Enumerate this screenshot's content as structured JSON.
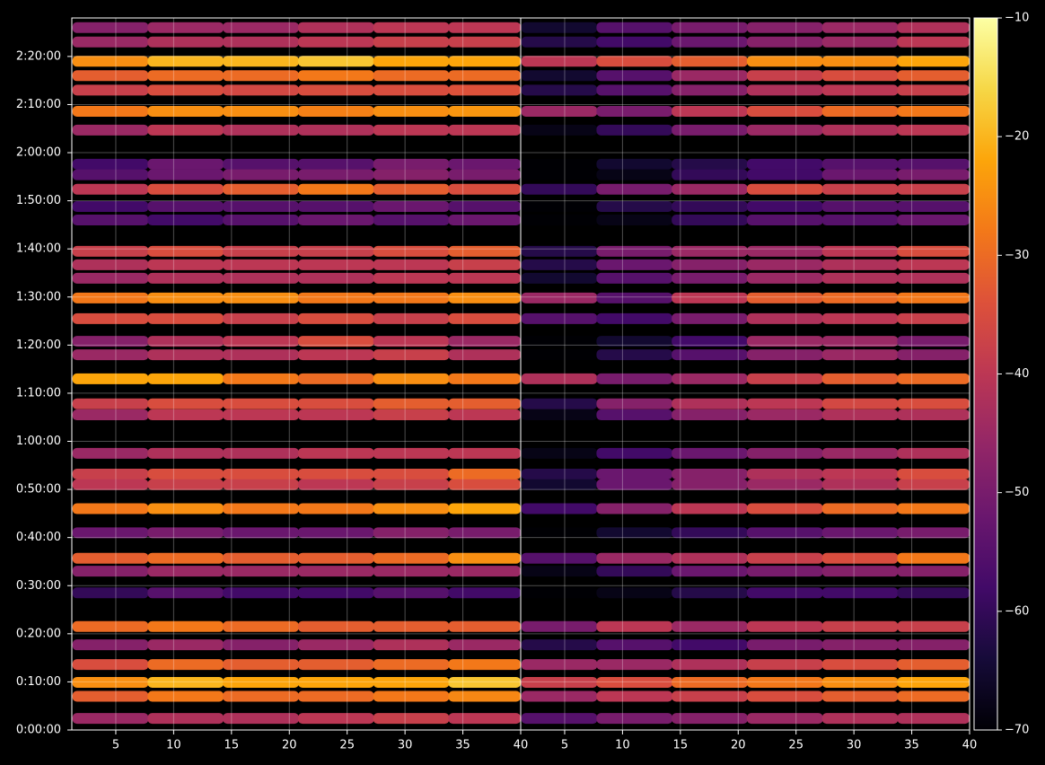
{
  "chart_data": {
    "type": "heatmap",
    "colormap": "inferno",
    "grid": true,
    "x": [
      4.5,
      11,
      17.5,
      24,
      30.5,
      37
    ],
    "y": [
      146,
      143,
      139,
      136,
      133,
      128.6,
      124.7,
      117.6,
      115.4,
      112.4,
      108.8,
      106,
      99.5,
      96.7,
      93.9,
      89.8,
      85.5,
      80.8,
      78,
      73,
      67.8,
      65.5,
      57.5,
      53.2,
      51,
      46,
      41,
      35.7,
      33,
      28.5,
      21.5,
      17.7,
      13.6,
      9.9,
      7,
      2.4
    ],
    "panels": [
      {
        "values": [
          [
            -48,
            -45,
            -45,
            -42,
            -40,
            -40
          ],
          [
            -45,
            -42,
            -42,
            -40,
            -38,
            -38
          ],
          [
            -25,
            -20,
            -20,
            -18,
            -22,
            -22
          ],
          [
            -32,
            -30,
            -30,
            -28,
            -30,
            -30
          ],
          [
            -38,
            -35,
            -36,
            -35,
            -35,
            -34
          ],
          [
            -28,
            -25,
            -25,
            -27,
            -25,
            -24
          ],
          [
            -45,
            -40,
            -42,
            -42,
            -40,
            -40
          ],
          [
            -58,
            -52,
            -55,
            -55,
            -50,
            -52
          ],
          [
            -55,
            -52,
            -50,
            -50,
            -48,
            -50
          ],
          [
            -40,
            -35,
            -32,
            -28,
            -32,
            -35
          ],
          [
            -58,
            -55,
            -55,
            -55,
            -52,
            -55
          ],
          [
            -55,
            -58,
            -55,
            -52,
            -55,
            -52
          ],
          [
            -38,
            -35,
            -38,
            -38,
            -35,
            -32
          ],
          [
            -42,
            -40,
            -40,
            -40,
            -40,
            -38
          ],
          [
            -45,
            -42,
            -42,
            -42,
            -40,
            -40
          ],
          [
            -28,
            -25,
            -25,
            -28,
            -28,
            -25
          ],
          [
            -35,
            -35,
            -38,
            -35,
            -38,
            -35
          ],
          [
            -48,
            -42,
            -40,
            -35,
            -40,
            -45
          ],
          [
            -45,
            -42,
            -42,
            -40,
            -38,
            -42
          ],
          [
            -22,
            -22,
            -28,
            -30,
            -25,
            -28
          ],
          [
            -38,
            -35,
            -35,
            -35,
            -32,
            -32
          ],
          [
            -45,
            -40,
            -40,
            -40,
            -38,
            -40
          ],
          [
            -45,
            -42,
            -42,
            -40,
            -40,
            -40
          ],
          [
            -38,
            -35,
            -35,
            -35,
            -35,
            -30
          ],
          [
            -40,
            -38,
            -38,
            -40,
            -38,
            -35
          ],
          [
            -28,
            -25,
            -28,
            -28,
            -25,
            -22
          ],
          [
            -52,
            -50,
            -52,
            -52,
            -48,
            -50
          ],
          [
            -32,
            -30,
            -32,
            -32,
            -30,
            -25
          ],
          [
            -48,
            -45,
            -45,
            -45,
            -45,
            -45
          ],
          [
            -60,
            -55,
            -58,
            -58,
            -55,
            -58
          ],
          [
            -30,
            -28,
            -30,
            -32,
            -32,
            -32
          ],
          [
            -48,
            -45,
            -48,
            -45,
            -42,
            -45
          ],
          [
            -35,
            -30,
            -32,
            -32,
            -30,
            -28
          ],
          [
            -25,
            -20,
            -22,
            -22,
            -22,
            -18
          ],
          [
            -32,
            -28,
            -30,
            -30,
            -28,
            -26
          ],
          [
            -45,
            -42,
            -42,
            -40,
            -38,
            -40
          ]
        ]
      },
      {
        "values": [
          [
            -65,
            -55,
            -50,
            -48,
            -45,
            -42
          ],
          [
            -62,
            -58,
            -52,
            -48,
            -45,
            -40
          ],
          [
            -40,
            -35,
            -32,
            -25,
            -25,
            -22
          ],
          [
            -65,
            -55,
            -45,
            -38,
            -35,
            -32
          ],
          [
            -62,
            -55,
            -48,
            -42,
            -40,
            -38
          ],
          [
            -45,
            -50,
            -40,
            -35,
            -30,
            -28
          ],
          [
            -68,
            -60,
            -50,
            -45,
            -42,
            -40
          ],
          [
            -70,
            -65,
            -62,
            -58,
            -55,
            -55
          ],
          [
            -70,
            -68,
            -60,
            -58,
            -52,
            -50
          ],
          [
            -60,
            -50,
            -45,
            -35,
            -38,
            -38
          ],
          [
            -70,
            -62,
            -60,
            -58,
            -55,
            -55
          ],
          [
            -70,
            -68,
            -60,
            -55,
            -55,
            -52
          ],
          [
            -62,
            -50,
            -45,
            -45,
            -40,
            -35
          ],
          [
            -62,
            -52,
            -48,
            -45,
            -42,
            -40
          ],
          [
            -65,
            -55,
            -50,
            -45,
            -42,
            -42
          ],
          [
            -45,
            -55,
            -40,
            -32,
            -30,
            -28
          ],
          [
            -55,
            -58,
            -50,
            -42,
            -40,
            -38
          ],
          [
            -70,
            -65,
            -58,
            -45,
            -45,
            -50
          ],
          [
            -70,
            -62,
            -55,
            -48,
            -45,
            -48
          ],
          [
            -42,
            -50,
            -45,
            -38,
            -32,
            -30
          ],
          [
            -62,
            -48,
            -42,
            -40,
            -36,
            -35
          ],
          [
            -68,
            -55,
            -48,
            -45,
            -42,
            -42
          ],
          [
            -68,
            -58,
            -52,
            -48,
            -45,
            -42
          ],
          [
            -62,
            -52,
            -48,
            -42,
            -40,
            -35
          ],
          [
            -65,
            -52,
            -48,
            -45,
            -42,
            -38
          ],
          [
            -58,
            -48,
            -40,
            -35,
            -30,
            -28
          ],
          [
            -70,
            -65,
            -60,
            -55,
            -52,
            -50
          ],
          [
            -55,
            -45,
            -42,
            -38,
            -35,
            -28
          ],
          [
            -68,
            -60,
            -52,
            -50,
            -48,
            -48
          ],
          [
            -70,
            -68,
            -62,
            -58,
            -58,
            -60
          ],
          [
            -50,
            -40,
            -45,
            -40,
            -38,
            -38
          ],
          [
            -62,
            -55,
            -58,
            -50,
            -48,
            -48
          ],
          [
            -45,
            -45,
            -42,
            -38,
            -35,
            -32
          ],
          [
            -38,
            -35,
            -30,
            -28,
            -25,
            -22
          ],
          [
            -45,
            -40,
            -38,
            -35,
            -32,
            -30
          ],
          [
            -55,
            -50,
            -48,
            -45,
            -42,
            -42
          ]
        ]
      }
    ],
    "xlim": [
      1.2,
      40
    ],
    "xticks": [
      5,
      10,
      15,
      20,
      25,
      30,
      35,
      40
    ],
    "ylim": [
      0,
      148
    ],
    "yticks": [
      {
        "value": 0,
        "label": "0:00:00"
      },
      {
        "value": 10,
        "label": "0:10:00"
      },
      {
        "value": 20,
        "label": "0:20:00"
      },
      {
        "value": 30,
        "label": "0:30:00"
      },
      {
        "value": 40,
        "label": "0:40:00"
      },
      {
        "value": 50,
        "label": "0:50:00"
      },
      {
        "value": 60,
        "label": "1:00:00"
      },
      {
        "value": 70,
        "label": "1:10:00"
      },
      {
        "value": 80,
        "label": "1:20:00"
      },
      {
        "value": 90,
        "label": "1:30:00"
      },
      {
        "value": 100,
        "label": "1:40:00"
      },
      {
        "value": 110,
        "label": "1:50:00"
      },
      {
        "value": 120,
        "label": "2:00:00"
      },
      {
        "value": 130,
        "label": "2:10:00"
      },
      {
        "value": 140,
        "label": "2:20:00"
      }
    ],
    "clim": [
      -70,
      -10
    ],
    "cticks": [
      {
        "value": -70,
        "label": "−70"
      },
      {
        "value": -60,
        "label": "−60"
      },
      {
        "value": -50,
        "label": "−50"
      },
      {
        "value": -40,
        "label": "−40"
      },
      {
        "value": -30,
        "label": "−30"
      },
      {
        "value": -20,
        "label": "−20"
      },
      {
        "value": -10,
        "label": "−10"
      }
    ]
  }
}
